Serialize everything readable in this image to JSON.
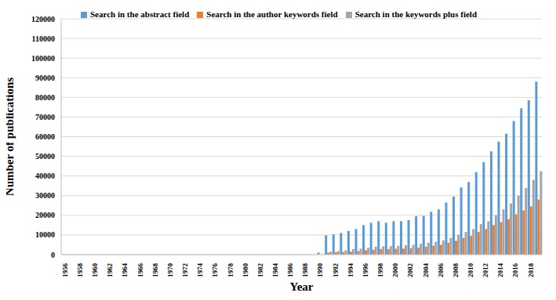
{
  "chart_data": {
    "type": "bar",
    "x_label": "Year",
    "y_label": "Number of publications",
    "categories": [
      "1956",
      null,
      "1958",
      null,
      "1960",
      null,
      "1962",
      null,
      "1964",
      null,
      "1966",
      null,
      "1968",
      null,
      "1970",
      null,
      "1972",
      null,
      "1974",
      null,
      "1976",
      null,
      "1978",
      null,
      "1980",
      null,
      "1982",
      null,
      "1984",
      null,
      "1986",
      null,
      "1988",
      null,
      "1990",
      null,
      "1992",
      null,
      "1994",
      null,
      "1996",
      null,
      "1998",
      null,
      "2000",
      null,
      "2002",
      null,
      "2004",
      null,
      "2006",
      null,
      "2008",
      null,
      "2010",
      null,
      "2012",
      null,
      "2014",
      null,
      "2016",
      null,
      "2018",
      null
    ],
    "series": [
      {
        "name": "Search in the abstract field",
        "color": "#5b9bd5",
        "values": [
          0,
          0,
          0,
          0,
          0,
          0,
          0,
          0,
          0,
          0,
          0,
          0,
          0,
          0,
          0,
          0,
          0,
          0,
          0,
          0,
          0,
          0,
          0,
          0,
          0,
          0,
          0,
          0,
          0,
          0,
          0,
          0,
          0,
          0,
          1000,
          9800,
          10300,
          11000,
          12000,
          13000,
          15000,
          16200,
          17000,
          16200,
          17000,
          17000,
          17500,
          19500,
          19700,
          21800,
          23000,
          26500,
          29500,
          34200,
          37000,
          42000,
          47000,
          52500,
          57500,
          61500,
          68000,
          74500,
          78500,
          88000
        ]
      },
      {
        "name": "Search in the author keywords field",
        "color": "#ed7d31",
        "values": [
          0,
          0,
          0,
          0,
          0,
          0,
          0,
          0,
          0,
          0,
          0,
          0,
          0,
          0,
          0,
          0,
          0,
          0,
          0,
          0,
          0,
          0,
          0,
          0,
          0,
          0,
          0,
          0,
          0,
          0,
          0,
          0,
          0,
          0,
          0,
          1000,
          1200,
          1300,
          1500,
          1800,
          2200,
          2500,
          2800,
          2800,
          3000,
          3000,
          3200,
          3500,
          4000,
          4500,
          5000,
          6000,
          7000,
          8500,
          9500,
          11500,
          13000,
          15000,
          16500,
          18000,
          20500,
          22500,
          24500,
          28000
        ]
      },
      {
        "name": "Search in the keywords plus field",
        "color": "#a5a5a5",
        "values": [
          0,
          0,
          0,
          0,
          0,
          0,
          0,
          0,
          0,
          0,
          0,
          0,
          0,
          0,
          0,
          0,
          0,
          0,
          0,
          0,
          0,
          0,
          0,
          0,
          0,
          0,
          0,
          0,
          0,
          0,
          0,
          0,
          0,
          0,
          0,
          1500,
          1800,
          2200,
          2800,
          3000,
          3500,
          4000,
          4200,
          4300,
          4500,
          4800,
          5000,
          5500,
          6000,
          6500,
          7200,
          8500,
          10000,
          11500,
          13000,
          15500,
          17000,
          20000,
          23000,
          26000,
          30000,
          34000,
          38000,
          42500
        ]
      }
    ],
    "ylim": [
      0,
      120000
    ],
    "yticks": [
      0,
      10000,
      20000,
      30000,
      40000,
      50000,
      60000,
      70000,
      80000,
      90000,
      100000,
      110000,
      120000
    ],
    "grid": true,
    "legend": "top"
  }
}
